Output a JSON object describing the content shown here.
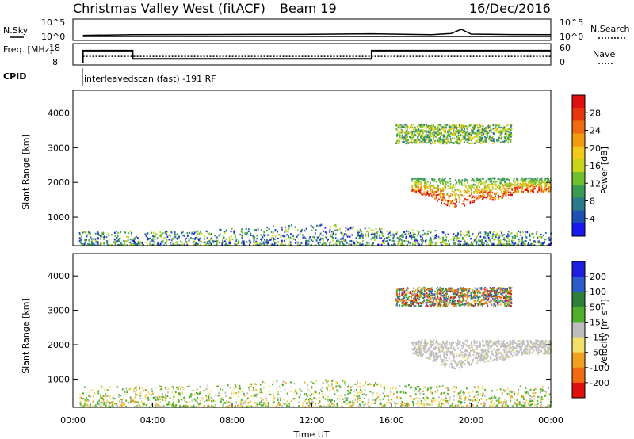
{
  "header": {
    "station": "Christmas Valley West (fitACF)",
    "beam": "Beam 19",
    "date": "16/Dec/2016"
  },
  "chart_data": [
    {
      "type": "line",
      "name": "nsky-nsearch-panel",
      "left_label": "N.Sky",
      "right_label": "N.Search",
      "yticks_left": [
        "10^5",
        "10^0"
      ],
      "yticks_right": [
        "10^5",
        "10^0"
      ],
      "series": [
        {
          "name": "N.Sky",
          "x": [
            0.5,
            3,
            6,
            9,
            12,
            15,
            18,
            19,
            19.5,
            20,
            22,
            24
          ],
          "y": [
            0.6,
            0.8,
            0.85,
            0.9,
            0.92,
            1.1,
            0.8,
            1.2,
            2.5,
            1.0,
            0.85,
            0.8
          ]
        },
        {
          "name": "N.Search",
          "x": [
            0.5,
            24
          ],
          "y": [
            0.2,
            0.2
          ]
        }
      ]
    },
    {
      "type": "line",
      "name": "freq-nave-panel",
      "left_label": "Freq. [MHz]",
      "right_label": "Nave",
      "yticks_left": [
        "18",
        "8"
      ],
      "yticks_right": [
        "60",
        "0"
      ],
      "cpid_label": "CPID",
      "cpid_text": "interleavedscan (fast) -191 RF",
      "series": [
        {
          "name": "Freq",
          "x": [
            0.5,
            0.5,
            3,
            3,
            15,
            15,
            24
          ],
          "y": [
            8,
            15,
            15,
            10.5,
            10.5,
            15,
            15
          ]
        },
        {
          "name": "Nave",
          "x": [
            0.5,
            24
          ],
          "y": [
            23,
            23
          ]
        }
      ]
    },
    {
      "type": "heatmap",
      "name": "power-panel",
      "ylabel": "Slant Range [km]",
      "yticks": [
        "1000",
        "2000",
        "3000",
        "4000"
      ],
      "ylim": [
        180,
        4650
      ],
      "xlim": [
        0,
        24
      ],
      "colorbar": {
        "label": "Power [dB]",
        "ticks": [
          "4",
          "8",
          "12",
          "16",
          "20",
          "24",
          "28"
        ],
        "range": [
          0,
          32
        ],
        "colors": [
          "#1818f0",
          "#1e4fb4",
          "#2b7a8c",
          "#3a9c52",
          "#6fbf2e",
          "#c8d41a",
          "#f2c81a",
          "#f29a12",
          "#ef6a10",
          "#e8340c",
          "#e01010"
        ]
      },
      "regions": [
        {
          "t0": 0.3,
          "t1": 24,
          "r0": 190,
          "r1": 600,
          "level": "low"
        },
        {
          "t0": 16.2,
          "t1": 22,
          "r0": 3150,
          "r1": 3700,
          "level": "mid"
        },
        {
          "t0": 17,
          "t1": 24,
          "r0": 1400,
          "r1": 2300,
          "level": "high"
        }
      ]
    },
    {
      "type": "heatmap",
      "name": "velocity-panel",
      "ylabel": "Slant Range [km]",
      "yticks": [
        "1000",
        "2000",
        "3000",
        "4000"
      ],
      "xlabel": "Time UT",
      "xticks": [
        "00:00",
        "04:00",
        "08:00",
        "12:00",
        "16:00",
        "20:00",
        "00:00"
      ],
      "xlim": [
        0,
        24
      ],
      "ylim": [
        180,
        4650
      ],
      "colorbar": {
        "label": "Velocity [m s⁻¹]",
        "ticks": [
          "200",
          "100",
          "50",
          "15",
          "-15",
          "-50",
          "-100",
          "-200"
        ],
        "colors": [
          "#1e1ee0",
          "#2c5cc8",
          "#2f7f3a",
          "#4fae2a",
          "#bdbdbd",
          "#f2e06a",
          "#f2a020",
          "#ef6a10",
          "#e01010"
        ]
      },
      "regions": [
        {
          "t0": 0.3,
          "t1": 24,
          "r0": 190,
          "r1": 800,
          "level": "mixed"
        },
        {
          "t0": 16.2,
          "t1": 22,
          "r0": 3150,
          "r1": 3700,
          "level": "mixed"
        },
        {
          "t0": 17,
          "t1": 24,
          "r0": 1400,
          "r1": 2300,
          "level": "ground"
        }
      ]
    }
  ]
}
